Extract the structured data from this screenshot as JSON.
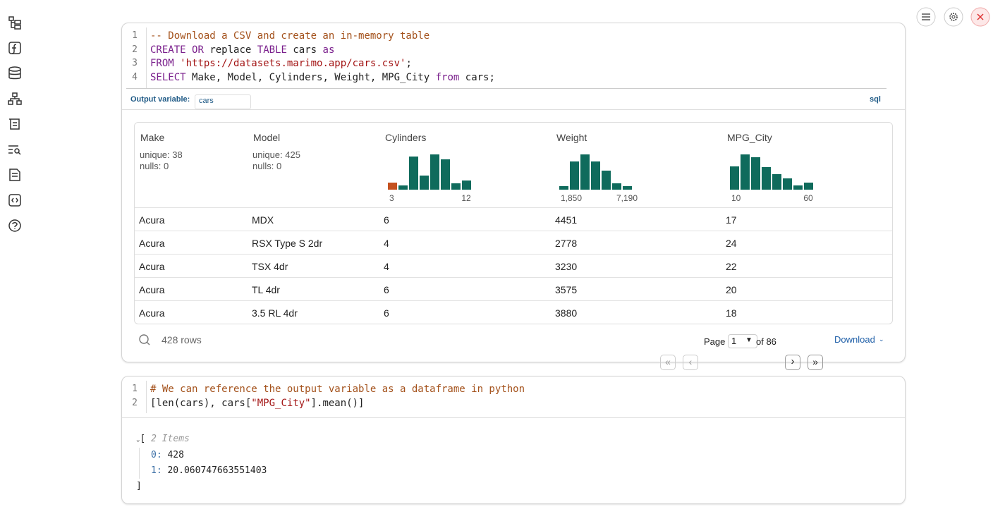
{
  "cell1": {
    "line_numbers": [
      "1",
      "2",
      "3",
      "4"
    ],
    "code": [
      [
        "-- Download a CSV and create an in-memory table"
      ],
      [
        "CREATE",
        "OR",
        "replace",
        "TABLE",
        "cars",
        "as"
      ],
      [
        "FROM",
        "'https://datasets.marimo.app/cars.csv'",
        ";"
      ],
      [
        "SELECT",
        "Make, Model, Cylinders, Weight, MPG_City",
        "from",
        "cars;"
      ]
    ],
    "output_variable_label": "Output variable:",
    "output_variable": "cars",
    "language": "sql",
    "table": {
      "columns": [
        {
          "name": "Make",
          "stats": [
            "unique: 38",
            "nulls: 0"
          ]
        },
        {
          "name": "Model",
          "stats": [
            "unique: 425",
            "nulls: 0"
          ]
        },
        {
          "name": "Cylinders",
          "histogram": {
            "counts": [
              10,
              6,
              47,
              20,
              50,
              43,
              9,
              13
            ],
            "color": "#0f6b5c",
            "highlight_color": "#c4511f",
            "highlighted_bin": 0,
            "axis_labels": [
              "3",
              "12"
            ]
          }
        },
        {
          "name": "Weight",
          "histogram": {
            "counts": [
              5,
              40,
              50,
              40,
              27,
              9,
              5
            ],
            "color": "#0f6b5c",
            "axis_labels": [
              "1,850",
              "7,190"
            ]
          }
        },
        {
          "name": "MPG_City",
          "histogram": {
            "counts": [
              33,
              50,
              46,
              32,
              22,
              16,
              6,
              10
            ],
            "color": "#0f6b5c",
            "axis_labels": [
              "10",
              "60"
            ]
          }
        }
      ],
      "rows": [
        [
          "Acura",
          "MDX",
          6,
          4451,
          17
        ],
        [
          "Acura",
          "RSX Type S 2dr",
          4,
          2778,
          24
        ],
        [
          "Acura",
          "TSX 4dr",
          4,
          3230,
          22
        ],
        [
          "Acura",
          "TL 4dr",
          6,
          3575,
          20
        ],
        [
          "Acura",
          "3.5 RL 4dr",
          6,
          3880,
          18
        ]
      ]
    },
    "footer": {
      "row_count": "428 rows",
      "page_label": "Page",
      "page": "1",
      "page_total": "of 86",
      "download": "Download"
    }
  },
  "cell2": {
    "line_numbers": [
      "1",
      "2"
    ],
    "code": [
      [
        "# We can reference the output variable as a dataframe in python"
      ],
      [
        "[len(cars), cars[",
        "\"MPG_City\"",
        "].mean()]"
      ]
    ],
    "output": {
      "open": "[",
      "summary": "2 Items",
      "items": [
        {
          "key": "0:",
          "value": 428
        },
        {
          "key": "1:",
          "value": 20.060747663551403
        }
      ],
      "close": "]"
    }
  }
}
